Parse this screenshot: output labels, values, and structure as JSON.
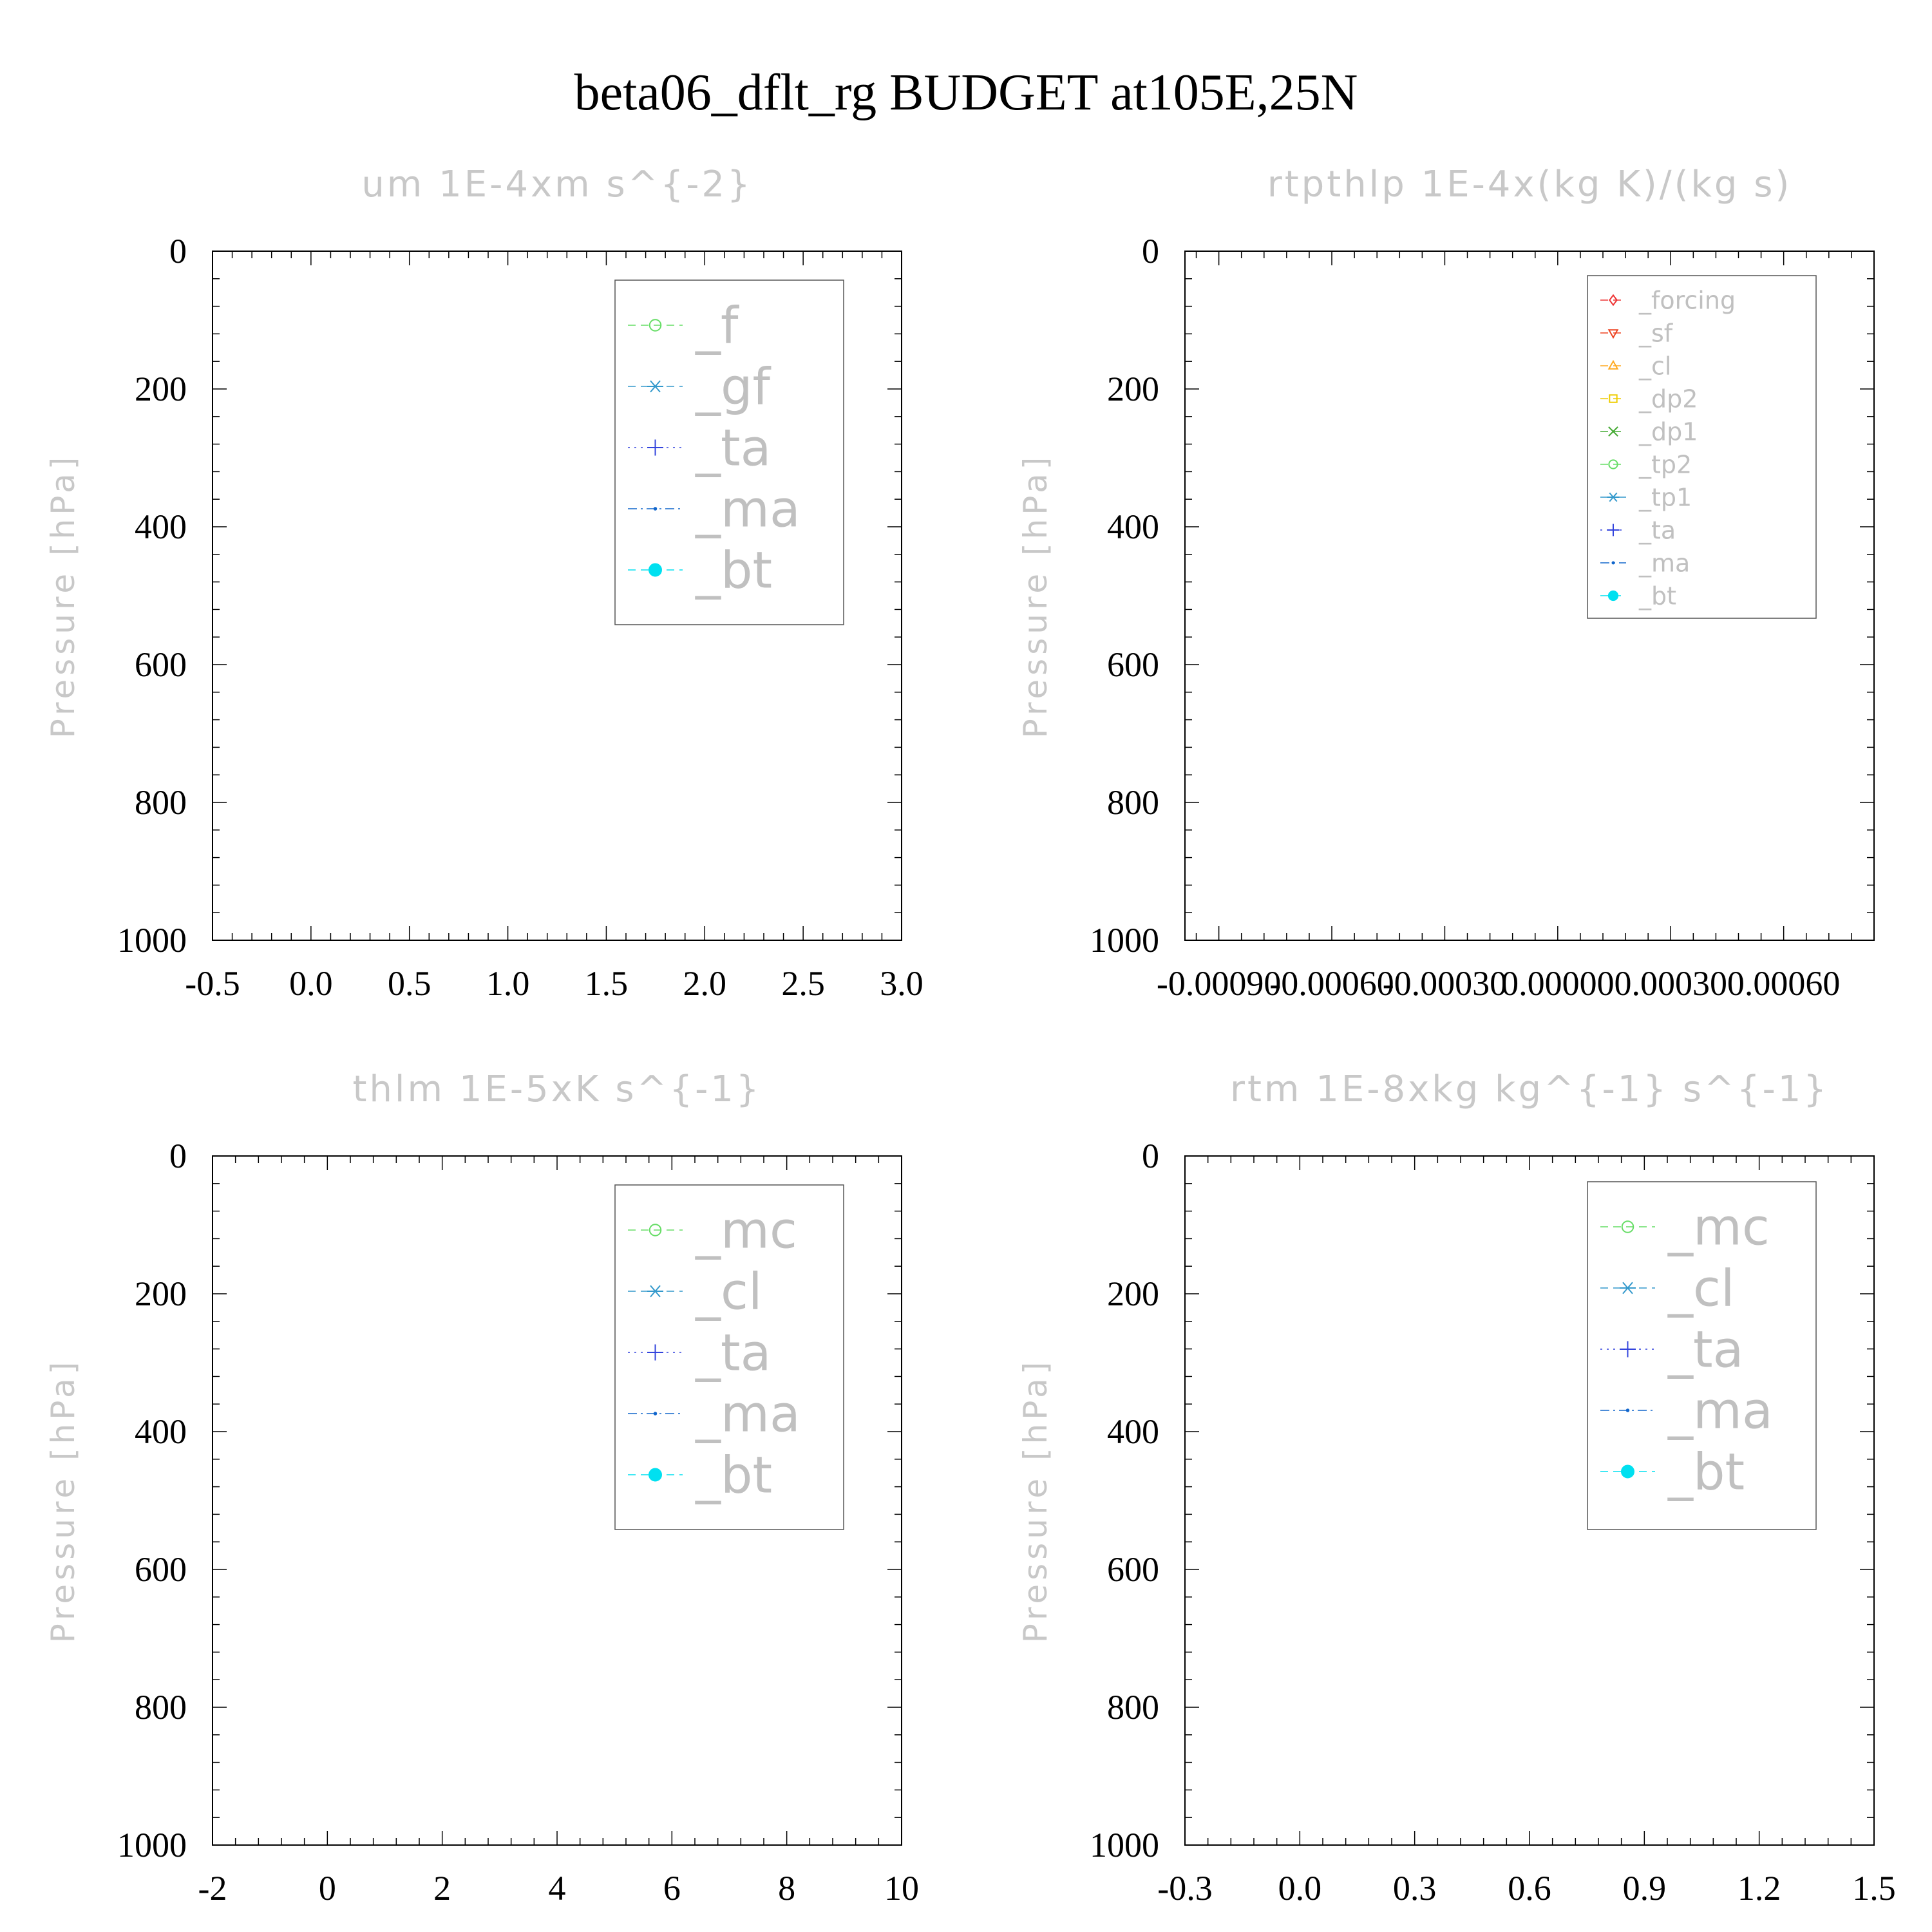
{
  "title": "beta06_dflt_rg  BUDGET at105E,25N",
  "chart_data": [
    {
      "type": "line",
      "title": "um  1E-4xm s^{-2}",
      "ylabel": "Pressure [hPa]",
      "xlim": [
        -0.5,
        3.0
      ],
      "ylim": [
        1000,
        0
      ],
      "xticks": [
        "-0.5",
        "0.0",
        "0.5",
        "1.0",
        "1.5",
        "2.0",
        "2.5",
        "3.0"
      ],
      "yticks": [
        "0",
        "200",
        "400",
        "600",
        "800",
        "1000"
      ],
      "legend_placement": "top-right",
      "series": [
        {
          "name": "_f",
          "color": "#66dd66",
          "marker": "circle",
          "style": "dashed"
        },
        {
          "name": "_gf",
          "color": "#3399cc",
          "marker": "asterisk",
          "style": "dashed"
        },
        {
          "name": "_ta",
          "color": "#3344dd",
          "marker": "plus",
          "style": "dotted"
        },
        {
          "name": "_ma",
          "color": "#1166cc",
          "marker": "dot",
          "style": "dashdot"
        },
        {
          "name": "_bt",
          "color": "#00e0f0",
          "marker": "filled-circle",
          "style": "dashed"
        }
      ]
    },
    {
      "type": "line",
      "title": "rtpthlp  1E-4x(kg K)/(kg s)",
      "ylabel": "Pressure [hPa]",
      "xlim": [
        -0.00099,
        0.00084
      ],
      "ylim": [
        1000,
        0
      ],
      "xticks": [
        "-0.00090",
        "-0.00060",
        "-0.00030",
        "0.00000",
        "0.00030",
        "0.00060"
      ],
      "yticks": [
        "0",
        "200",
        "400",
        "600",
        "800",
        "1000"
      ],
      "legend_placement": "top-right",
      "series": [
        {
          "name": "_forcing",
          "color": "#ee3333",
          "marker": "diamond",
          "style": "dashed"
        },
        {
          "name": "_sf",
          "color": "#ee4422",
          "marker": "triangle-down",
          "style": "dashed"
        },
        {
          "name": "_cl",
          "color": "#ffaa22",
          "marker": "triangle-up",
          "style": "dashed"
        },
        {
          "name": "_dp2",
          "color": "#eecc00",
          "marker": "square",
          "style": "dashed"
        },
        {
          "name": "_dp1",
          "color": "#44aa33",
          "marker": "x",
          "style": "dashed"
        },
        {
          "name": "_tp2",
          "color": "#66dd66",
          "marker": "circle",
          "style": "dashed"
        },
        {
          "name": "_tp1",
          "color": "#3399cc",
          "marker": "asterisk",
          "style": "dashdot"
        },
        {
          "name": "_ta",
          "color": "#3344dd",
          "marker": "plus",
          "style": "dotted"
        },
        {
          "name": "_ma",
          "color": "#1166cc",
          "marker": "dot",
          "style": "dashdot"
        },
        {
          "name": "_bt",
          "color": "#00e0f0",
          "marker": "filled-circle",
          "style": "dashed"
        }
      ]
    },
    {
      "type": "line",
      "title": "thlm  1E-5xK s^{-1}",
      "ylabel": "Pressure [hPa]",
      "xlim": [
        -2,
        10
      ],
      "ylim": [
        1000,
        0
      ],
      "xticks": [
        "-2",
        "0",
        "2",
        "4",
        "6",
        "8",
        "10"
      ],
      "yticks": [
        "0",
        "200",
        "400",
        "600",
        "800",
        "1000"
      ],
      "legend_placement": "top-right",
      "series": [
        {
          "name": "_mc",
          "color": "#66dd66",
          "marker": "circle",
          "style": "dashed"
        },
        {
          "name": "_cl",
          "color": "#3399cc",
          "marker": "asterisk",
          "style": "dashed"
        },
        {
          "name": "_ta",
          "color": "#3344dd",
          "marker": "plus",
          "style": "dotted"
        },
        {
          "name": "_ma",
          "color": "#1166cc",
          "marker": "dot",
          "style": "dashdot"
        },
        {
          "name": "_bt",
          "color": "#00e0f0",
          "marker": "filled-circle",
          "style": "dashed"
        }
      ]
    },
    {
      "type": "line",
      "title": "rtm  1E-8xkg kg^{-1} s^{-1}",
      "ylabel": "Pressure [hPa]",
      "xlim": [
        -0.3,
        1.5
      ],
      "ylim": [
        1000,
        0
      ],
      "xticks": [
        "-0.3",
        "0.0",
        "0.3",
        "0.6",
        "0.9",
        "1.2",
        "1.5"
      ],
      "yticks": [
        "0",
        "200",
        "400",
        "600",
        "800",
        "1000"
      ],
      "legend_placement": "top-right",
      "series": [
        {
          "name": "_mc",
          "color": "#66dd66",
          "marker": "circle",
          "style": "dashed"
        },
        {
          "name": "_cl",
          "color": "#3399cc",
          "marker": "asterisk",
          "style": "dashed"
        },
        {
          "name": "_ta",
          "color": "#3344dd",
          "marker": "plus",
          "style": "dotted"
        },
        {
          "name": "_ma",
          "color": "#1166cc",
          "marker": "dot",
          "style": "dashdot"
        },
        {
          "name": "_bt",
          "color": "#00e0f0",
          "marker": "filled-circle",
          "style": "dashed"
        }
      ]
    }
  ]
}
